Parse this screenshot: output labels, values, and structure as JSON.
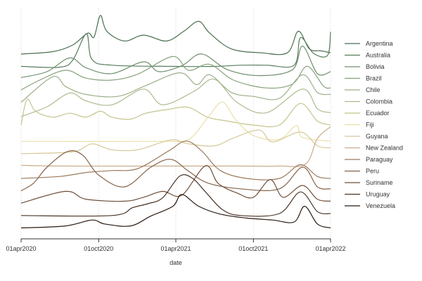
{
  "chart_data": {
    "type": "line",
    "subtype": "ridgeline",
    "xlabel": "date",
    "x_ticks": [
      "01apr2020",
      "01oct2020",
      "01apr2021",
      "01oct2021",
      "01apr2022"
    ],
    "x_range": [
      "2020-04-01",
      "2022-04-01"
    ],
    "grid": "vertical dotted lines at x ticks",
    "legend_position": "right",
    "series": [
      {
        "name": "Argentina",
        "color": "#4a6e4f",
        "points": [
          [
            "2020-04-01",
            0.02
          ],
          [
            "2020-06-15",
            0.08
          ],
          [
            "2020-08-01",
            0.25
          ],
          [
            "2020-09-05",
            0.55
          ],
          [
            "2020-09-20",
            0.45
          ],
          [
            "2020-10-05",
            1.0
          ],
          [
            "2020-10-20",
            0.6
          ],
          [
            "2020-12-01",
            0.35
          ],
          [
            "2021-01-15",
            0.5
          ],
          [
            "2021-03-10",
            0.35
          ],
          [
            "2021-04-20",
            0.6
          ],
          [
            "2021-05-25",
            0.85
          ],
          [
            "2021-06-20",
            0.55
          ],
          [
            "2021-08-10",
            0.15
          ],
          [
            "2021-10-20",
            0.05
          ],
          [
            "2021-12-20",
            0.05
          ],
          [
            "2022-01-15",
            0.6
          ],
          [
            "2022-02-10",
            0.15
          ],
          [
            "2022-03-10",
            0.1
          ],
          [
            "2022-04-01",
            0.05
          ]
        ]
      },
      {
        "name": "Australia",
        "color": "#587c5c",
        "points": [
          [
            "2020-04-01",
            0.02
          ],
          [
            "2020-07-01",
            0.0
          ],
          [
            "2020-08-01",
            0.18
          ],
          [
            "2020-09-02",
            0.85
          ],
          [
            "2020-09-15",
            0.2
          ],
          [
            "2020-11-01",
            0.05
          ],
          [
            "2021-04-01",
            0.02
          ],
          [
            "2021-07-01",
            0.02
          ],
          [
            "2021-09-01",
            0.05
          ],
          [
            "2021-11-01",
            0.05
          ],
          [
            "2022-01-05",
            0.05
          ],
          [
            "2022-01-20",
            0.75
          ],
          [
            "2022-02-20",
            0.35
          ],
          [
            "2022-03-25",
            0.3
          ],
          [
            "2022-04-01",
            0.9
          ]
        ]
      },
      {
        "name": "Bolivia",
        "color": "#6f8f6c",
        "points": [
          [
            "2020-04-01",
            0.05
          ],
          [
            "2020-06-01",
            0.2
          ],
          [
            "2020-07-25",
            0.55
          ],
          [
            "2020-09-01",
            0.3
          ],
          [
            "2020-11-01",
            0.15
          ],
          [
            "2021-01-15",
            0.45
          ],
          [
            "2021-02-20",
            0.2
          ],
          [
            "2021-04-15",
            0.35
          ],
          [
            "2021-06-01",
            0.65
          ],
          [
            "2021-08-01",
            0.25
          ],
          [
            "2021-10-15",
            0.1
          ],
          [
            "2022-01-01",
            0.25
          ],
          [
            "2022-01-25",
            0.85
          ],
          [
            "2022-03-01",
            0.15
          ],
          [
            "2022-04-01",
            0.2
          ]
        ]
      },
      {
        "name": "Brazil",
        "color": "#86a07a",
        "points": [
          [
            "2020-04-01",
            0.05
          ],
          [
            "2020-05-15",
            0.3
          ],
          [
            "2020-07-15",
            0.55
          ],
          [
            "2020-09-01",
            0.35
          ],
          [
            "2020-11-01",
            0.3
          ],
          [
            "2021-01-01",
            0.45
          ],
          [
            "2021-03-25",
            0.9
          ],
          [
            "2021-05-01",
            0.55
          ],
          [
            "2021-06-20",
            0.7
          ],
          [
            "2021-08-15",
            0.3
          ],
          [
            "2021-11-01",
            0.1
          ],
          [
            "2022-01-01",
            0.2
          ],
          [
            "2022-02-05",
            0.65
          ],
          [
            "2022-03-15",
            0.15
          ],
          [
            "2022-04-01",
            0.1
          ]
        ]
      },
      {
        "name": "Chile",
        "color": "#9bb08a",
        "points": [
          [
            "2020-04-01",
            0.05
          ],
          [
            "2020-06-15",
            0.7
          ],
          [
            "2020-07-15",
            0.45
          ],
          [
            "2020-09-01",
            0.25
          ],
          [
            "2020-11-15",
            0.2
          ],
          [
            "2021-01-15",
            0.45
          ],
          [
            "2021-04-10",
            0.8
          ],
          [
            "2021-05-20",
            0.5
          ],
          [
            "2021-06-20",
            0.75
          ],
          [
            "2021-08-10",
            0.3
          ],
          [
            "2021-10-01",
            0.2
          ],
          [
            "2021-12-01",
            0.15
          ],
          [
            "2022-01-25",
            0.75
          ],
          [
            "2022-03-01",
            0.3
          ],
          [
            "2022-04-01",
            0.25
          ]
        ]
      },
      {
        "name": "Colombia",
        "color": "#adbb8e",
        "points": [
          [
            "2020-04-01",
            0.0
          ],
          [
            "2020-06-01",
            0.25
          ],
          [
            "2020-07-25",
            0.6
          ],
          [
            "2020-09-01",
            0.4
          ],
          [
            "2020-11-01",
            0.3
          ],
          [
            "2021-01-15",
            0.7
          ],
          [
            "2021-03-01",
            0.3
          ],
          [
            "2021-05-15",
            0.65
          ],
          [
            "2021-07-01",
            0.95
          ],
          [
            "2021-08-25",
            0.35
          ],
          [
            "2021-11-01",
            0.1
          ],
          [
            "2022-01-25",
            0.7
          ],
          [
            "2022-03-01",
            0.2
          ],
          [
            "2022-04-01",
            0.1
          ]
        ]
      },
      {
        "name": "Ecuador",
        "color": "#c4c48d",
        "points": [
          [
            "2020-04-01",
            0.1
          ],
          [
            "2020-04-15",
            0.75
          ],
          [
            "2020-05-05",
            0.45
          ],
          [
            "2020-06-15",
            0.3
          ],
          [
            "2020-07-25",
            0.4
          ],
          [
            "2020-09-01",
            0.3
          ],
          [
            "2020-10-05",
            0.45
          ],
          [
            "2020-11-01",
            0.3
          ],
          [
            "2020-12-15",
            0.25
          ],
          [
            "2021-01-20",
            0.4
          ],
          [
            "2021-03-15",
            0.5
          ],
          [
            "2021-05-01",
            0.55
          ],
          [
            "2021-06-15",
            0.3
          ],
          [
            "2021-08-01",
            0.2
          ],
          [
            "2021-10-01",
            0.1
          ],
          [
            "2021-12-01",
            0.1
          ],
          [
            "2022-01-20",
            0.65
          ],
          [
            "2022-03-01",
            0.2
          ],
          [
            "2022-04-01",
            0.1
          ]
        ]
      },
      {
        "name": "Fiji",
        "color": "#eadfa6",
        "points": [
          [
            "2020-04-01",
            0.0
          ],
          [
            "2021-03-01",
            0.0
          ],
          [
            "2021-05-01",
            0.05
          ],
          [
            "2021-06-15",
            0.6
          ],
          [
            "2021-07-20",
            1.0
          ],
          [
            "2021-08-20",
            0.55
          ],
          [
            "2021-10-01",
            0.15
          ],
          [
            "2021-12-01",
            0.05
          ],
          [
            "2022-01-10",
            0.4
          ],
          [
            "2022-01-25",
            0.1
          ],
          [
            "2022-04-01",
            0.0
          ]
        ]
      },
      {
        "name": "Guyana",
        "color": "#d6c89a",
        "points": [
          [
            "2020-04-01",
            0.0
          ],
          [
            "2020-08-01",
            0.05
          ],
          [
            "2020-09-15",
            0.25
          ],
          [
            "2020-11-01",
            0.1
          ],
          [
            "2021-01-01",
            0.1
          ],
          [
            "2021-03-20",
            0.35
          ],
          [
            "2021-05-01",
            0.25
          ],
          [
            "2021-07-01",
            0.2
          ],
          [
            "2021-08-15",
            0.4
          ],
          [
            "2021-10-15",
            0.6
          ],
          [
            "2021-11-15",
            0.3
          ],
          [
            "2022-01-20",
            0.55
          ],
          [
            "2022-03-01",
            0.2
          ],
          [
            "2022-04-01",
            0.15
          ]
        ]
      },
      {
        "name": "New Zealand",
        "color": "#c9ad8a",
        "points": [
          [
            "2020-04-01",
            0.02
          ],
          [
            "2020-07-01",
            0.0
          ],
          [
            "2021-03-01",
            0.0
          ],
          [
            "2021-09-01",
            0.0
          ],
          [
            "2021-12-01",
            0.0
          ],
          [
            "2022-02-01",
            0.05
          ],
          [
            "2022-03-01",
            0.7
          ],
          [
            "2022-04-01",
            1.0
          ]
        ]
      },
      {
        "name": "Paraguay",
        "color": "#9c7a5c",
        "points": [
          [
            "2020-04-01",
            0.0
          ],
          [
            "2020-07-01",
            0.05
          ],
          [
            "2020-09-01",
            0.15
          ],
          [
            "2020-11-01",
            0.2
          ],
          [
            "2021-01-01",
            0.25
          ],
          [
            "2021-03-15",
            0.7
          ],
          [
            "2021-04-25",
            0.95
          ],
          [
            "2021-06-01",
            0.7
          ],
          [
            "2021-07-15",
            0.2
          ],
          [
            "2021-09-15",
            0.0
          ],
          [
            "2021-12-01",
            0.0
          ],
          [
            "2022-01-20",
            0.35
          ],
          [
            "2022-03-01",
            0.05
          ],
          [
            "2022-04-01",
            0.0
          ]
        ]
      },
      {
        "name": "Peru",
        "color": "#86634a",
        "points": [
          [
            "2020-04-01",
            0.0
          ],
          [
            "2020-05-01",
            0.2
          ],
          [
            "2020-06-01",
            0.6
          ],
          [
            "2020-07-20",
            1.0
          ],
          [
            "2020-08-25",
            0.9
          ],
          [
            "2020-10-01",
            0.4
          ],
          [
            "2020-12-01",
            0.1
          ],
          [
            "2021-02-01",
            0.6
          ],
          [
            "2021-03-20",
            0.8
          ],
          [
            "2021-05-01",
            0.5
          ],
          [
            "2021-06-15",
            0.2
          ],
          [
            "2021-09-01",
            0.05
          ],
          [
            "2021-12-01",
            0.05
          ],
          [
            "2022-01-25",
            0.6
          ],
          [
            "2022-03-01",
            0.1
          ],
          [
            "2022-04-01",
            0.05
          ]
        ]
      },
      {
        "name": "Suriname",
        "color": "#6e4f3a",
        "points": [
          [
            "2020-04-01",
            0.0
          ],
          [
            "2020-07-15",
            0.3
          ],
          [
            "2020-09-01",
            0.1
          ],
          [
            "2020-12-01",
            0.05
          ],
          [
            "2021-01-15",
            0.15
          ],
          [
            "2021-03-01",
            0.3
          ],
          [
            "2021-04-15",
            0.2
          ],
          [
            "2021-06-10",
            0.95
          ],
          [
            "2021-07-10",
            0.5
          ],
          [
            "2021-08-25",
            0.25
          ],
          [
            "2021-10-01",
            0.15
          ],
          [
            "2021-11-10",
            0.6
          ],
          [
            "2021-12-10",
            0.15
          ],
          [
            "2022-01-25",
            0.45
          ],
          [
            "2022-03-01",
            0.1
          ],
          [
            "2022-04-01",
            0.05
          ]
        ]
      },
      {
        "name": "Uruguay",
        "color": "#4a3426",
        "points": [
          [
            "2020-04-01",
            0.0
          ],
          [
            "2020-11-01",
            0.0
          ],
          [
            "2020-12-20",
            0.2
          ],
          [
            "2021-01-25",
            0.3
          ],
          [
            "2021-03-01",
            0.45
          ],
          [
            "2021-04-10",
            1.0
          ],
          [
            "2021-05-10",
            0.95
          ],
          [
            "2021-06-10",
            0.6
          ],
          [
            "2021-07-20",
            0.15
          ],
          [
            "2021-09-01",
            0.0
          ],
          [
            "2021-12-01",
            0.05
          ],
          [
            "2022-01-20",
            0.6
          ],
          [
            "2022-03-01",
            0.1
          ],
          [
            "2022-04-01",
            0.05
          ]
        ]
      },
      {
        "name": "Venezuela",
        "color": "#2a1a10",
        "points": [
          [
            "2020-04-01",
            0.0
          ],
          [
            "2020-07-15",
            0.05
          ],
          [
            "2020-09-15",
            0.2
          ],
          [
            "2020-10-15",
            0.1
          ],
          [
            "2020-12-15",
            0.05
          ],
          [
            "2021-02-01",
            0.3
          ],
          [
            "2021-03-25",
            0.55
          ],
          [
            "2021-04-15",
            0.85
          ],
          [
            "2021-05-25",
            0.55
          ],
          [
            "2021-07-15",
            0.35
          ],
          [
            "2021-09-15",
            0.25
          ],
          [
            "2021-11-15",
            0.2
          ],
          [
            "2022-01-05",
            0.15
          ],
          [
            "2022-01-30",
            0.55
          ],
          [
            "2022-03-01",
            0.1
          ],
          [
            "2022-04-01",
            0.0
          ]
        ]
      }
    ]
  }
}
